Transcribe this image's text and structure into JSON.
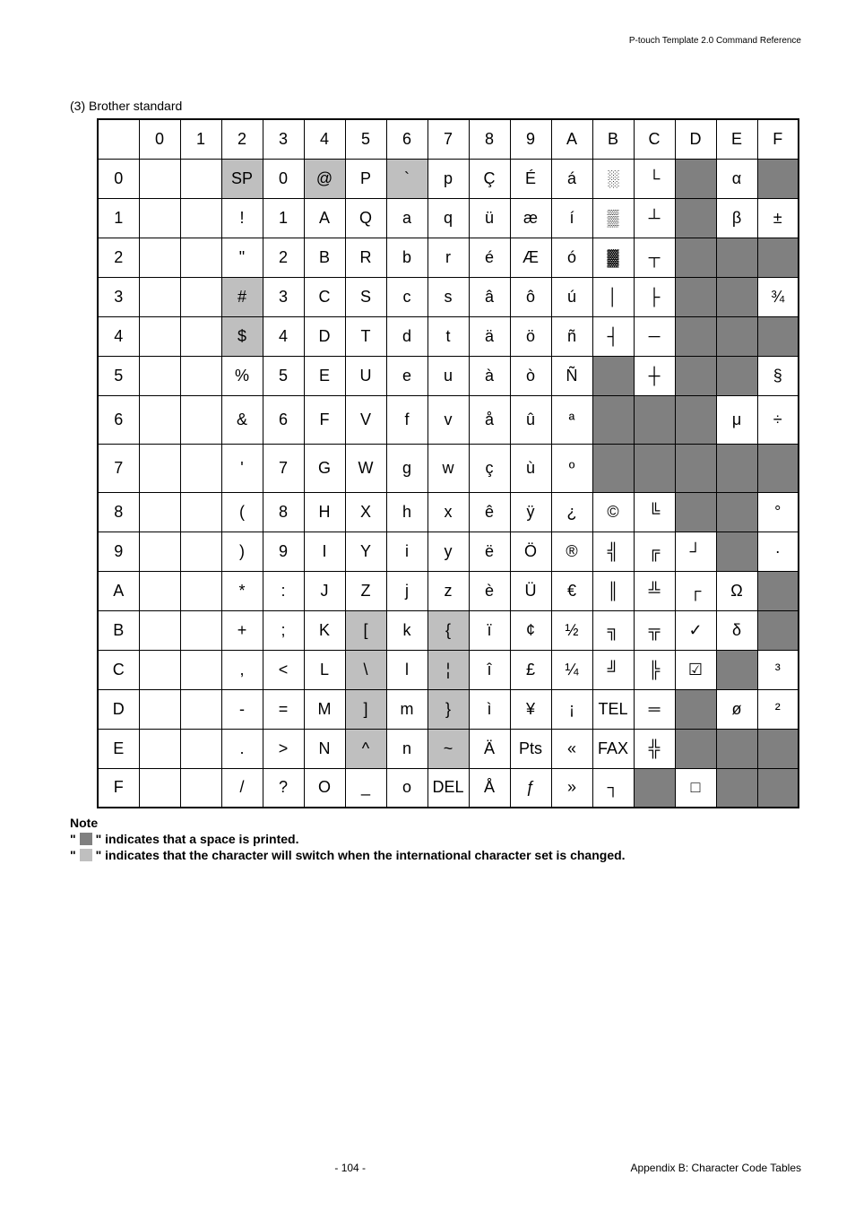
{
  "header": {
    "ref": "P-touch Template 2.0 Command Reference"
  },
  "section": {
    "title": "(3) Brother standard"
  },
  "table": {
    "col_headers": [
      "",
      "0",
      "1",
      "2",
      "3",
      "4",
      "5",
      "6",
      "7",
      "8",
      "9",
      "A",
      "B",
      "C",
      "D",
      "E",
      "F"
    ],
    "rows": [
      {
        "h": "0",
        "cells": [
          {
            "v": ""
          },
          {
            "v": ""
          },
          {
            "v": "SP",
            "cls": "grey"
          },
          {
            "v": "0"
          },
          {
            "v": "@",
            "cls": "grey"
          },
          {
            "v": "P"
          },
          {
            "v": "`",
            "cls": "grey"
          },
          {
            "v": "p"
          },
          {
            "v": "Ç"
          },
          {
            "v": "É"
          },
          {
            "v": "á"
          },
          {
            "v": "░"
          },
          {
            "v": "└"
          },
          {
            "v": "",
            "cls": "dark"
          },
          {
            "v": "α"
          },
          {
            "v": "",
            "cls": "dark"
          }
        ]
      },
      {
        "h": "1",
        "cells": [
          {
            "v": ""
          },
          {
            "v": ""
          },
          {
            "v": "!"
          },
          {
            "v": "1"
          },
          {
            "v": "A"
          },
          {
            "v": "Q"
          },
          {
            "v": "a"
          },
          {
            "v": "q"
          },
          {
            "v": "ü"
          },
          {
            "v": "æ"
          },
          {
            "v": "í"
          },
          {
            "v": "▒"
          },
          {
            "v": "┴"
          },
          {
            "v": "",
            "cls": "dark"
          },
          {
            "v": "β"
          },
          {
            "v": "±"
          }
        ]
      },
      {
        "h": "2",
        "cells": [
          {
            "v": ""
          },
          {
            "v": ""
          },
          {
            "v": "\""
          },
          {
            "v": "2"
          },
          {
            "v": "B"
          },
          {
            "v": "R"
          },
          {
            "v": "b"
          },
          {
            "v": "r"
          },
          {
            "v": "é"
          },
          {
            "v": "Æ"
          },
          {
            "v": "ó"
          },
          {
            "v": "▓"
          },
          {
            "v": "┬"
          },
          {
            "v": "",
            "cls": "dark"
          },
          {
            "v": "",
            "cls": "dark"
          },
          {
            "v": "",
            "cls": "dark"
          }
        ]
      },
      {
        "h": "3",
        "cells": [
          {
            "v": ""
          },
          {
            "v": ""
          },
          {
            "v": "#",
            "cls": "grey"
          },
          {
            "v": "3"
          },
          {
            "v": "C"
          },
          {
            "v": "S"
          },
          {
            "v": "c"
          },
          {
            "v": "s"
          },
          {
            "v": "â"
          },
          {
            "v": "ô"
          },
          {
            "v": "ú"
          },
          {
            "v": "│"
          },
          {
            "v": "├"
          },
          {
            "v": "",
            "cls": "dark"
          },
          {
            "v": "",
            "cls": "dark"
          },
          {
            "v": "¾"
          }
        ]
      },
      {
        "h": "4",
        "cells": [
          {
            "v": ""
          },
          {
            "v": ""
          },
          {
            "v": "$",
            "cls": "grey"
          },
          {
            "v": "4"
          },
          {
            "v": "D"
          },
          {
            "v": "T"
          },
          {
            "v": "d"
          },
          {
            "v": "t"
          },
          {
            "v": "ä"
          },
          {
            "v": "ö"
          },
          {
            "v": "ñ"
          },
          {
            "v": "┤"
          },
          {
            "v": "─"
          },
          {
            "v": "",
            "cls": "dark"
          },
          {
            "v": "",
            "cls": "dark"
          },
          {
            "v": "",
            "cls": "dark"
          }
        ]
      },
      {
        "h": "5",
        "cells": [
          {
            "v": ""
          },
          {
            "v": ""
          },
          {
            "v": "%"
          },
          {
            "v": "5"
          },
          {
            "v": "E"
          },
          {
            "v": "U"
          },
          {
            "v": "e"
          },
          {
            "v": "u"
          },
          {
            "v": "à"
          },
          {
            "v": "ò"
          },
          {
            "v": "Ñ"
          },
          {
            "v": "",
            "cls": "dark"
          },
          {
            "v": "┼"
          },
          {
            "v": "",
            "cls": "dark"
          },
          {
            "v": "",
            "cls": "dark"
          },
          {
            "v": "§"
          }
        ]
      },
      {
        "h": "6",
        "tall": true,
        "cells": [
          {
            "v": ""
          },
          {
            "v": ""
          },
          {
            "v": "&"
          },
          {
            "v": "6"
          },
          {
            "v": "F"
          },
          {
            "v": "V"
          },
          {
            "v": "f"
          },
          {
            "v": "v"
          },
          {
            "v": "å"
          },
          {
            "v": "û"
          },
          {
            "v": "ª"
          },
          {
            "v": "",
            "cls": "dark"
          },
          {
            "v": "",
            "cls": "dark"
          },
          {
            "v": "",
            "cls": "dark"
          },
          {
            "v": "μ"
          },
          {
            "v": "÷"
          }
        ]
      },
      {
        "h": "7",
        "tall": true,
        "cells": [
          {
            "v": ""
          },
          {
            "v": ""
          },
          {
            "v": "'"
          },
          {
            "v": "7"
          },
          {
            "v": "G"
          },
          {
            "v": "W"
          },
          {
            "v": "g"
          },
          {
            "v": "w"
          },
          {
            "v": "ç"
          },
          {
            "v": "ù"
          },
          {
            "v": "º"
          },
          {
            "v": "",
            "cls": "dark"
          },
          {
            "v": "",
            "cls": "dark"
          },
          {
            "v": "",
            "cls": "dark"
          },
          {
            "v": "",
            "cls": "dark"
          },
          {
            "v": "",
            "cls": "dark"
          }
        ]
      },
      {
        "h": "8",
        "cells": [
          {
            "v": ""
          },
          {
            "v": ""
          },
          {
            "v": "("
          },
          {
            "v": "8"
          },
          {
            "v": "H"
          },
          {
            "v": "X"
          },
          {
            "v": "h"
          },
          {
            "v": "x"
          },
          {
            "v": "ê"
          },
          {
            "v": "ÿ"
          },
          {
            "v": "¿"
          },
          {
            "v": "©"
          },
          {
            "v": "╚"
          },
          {
            "v": "",
            "cls": "dark"
          },
          {
            "v": "",
            "cls": "dark"
          },
          {
            "v": "°"
          }
        ]
      },
      {
        "h": "9",
        "cells": [
          {
            "v": ""
          },
          {
            "v": ""
          },
          {
            "v": ")"
          },
          {
            "v": "9"
          },
          {
            "v": "I"
          },
          {
            "v": "Y"
          },
          {
            "v": "i"
          },
          {
            "v": "y"
          },
          {
            "v": "ë"
          },
          {
            "v": "Ö"
          },
          {
            "v": "®"
          },
          {
            "v": "╣"
          },
          {
            "v": "╔"
          },
          {
            "v": "┘"
          },
          {
            "v": "",
            "cls": "dark"
          },
          {
            "v": "·"
          }
        ]
      },
      {
        "h": "A",
        "cells": [
          {
            "v": ""
          },
          {
            "v": ""
          },
          {
            "v": "*"
          },
          {
            "v": ":"
          },
          {
            "v": "J"
          },
          {
            "v": "Z"
          },
          {
            "v": "j"
          },
          {
            "v": "z"
          },
          {
            "v": "è"
          },
          {
            "v": "Ü"
          },
          {
            "v": "€"
          },
          {
            "v": "║"
          },
          {
            "v": "╩"
          },
          {
            "v": "┌"
          },
          {
            "v": "Ω"
          },
          {
            "v": "",
            "cls": "dark"
          }
        ]
      },
      {
        "h": "B",
        "cells": [
          {
            "v": ""
          },
          {
            "v": ""
          },
          {
            "v": "+"
          },
          {
            "v": ";"
          },
          {
            "v": "K"
          },
          {
            "v": "[",
            "cls": "grey"
          },
          {
            "v": "k"
          },
          {
            "v": "{",
            "cls": "grey"
          },
          {
            "v": "ï"
          },
          {
            "v": "¢"
          },
          {
            "v": "½"
          },
          {
            "v": "╗"
          },
          {
            "v": "╦"
          },
          {
            "v": "✓"
          },
          {
            "v": "δ"
          },
          {
            "v": "",
            "cls": "dark"
          }
        ]
      },
      {
        "h": "C",
        "cells": [
          {
            "v": ""
          },
          {
            "v": ""
          },
          {
            "v": ","
          },
          {
            "v": "<"
          },
          {
            "v": "L"
          },
          {
            "v": "\\",
            "cls": "grey"
          },
          {
            "v": "l"
          },
          {
            "v": "¦",
            "cls": "grey"
          },
          {
            "v": "î"
          },
          {
            "v": "£"
          },
          {
            "v": "¼"
          },
          {
            "v": "╝"
          },
          {
            "v": "╠"
          },
          {
            "v": "☑"
          },
          {
            "v": "",
            "cls": "dark"
          },
          {
            "v": "³"
          }
        ]
      },
      {
        "h": "D",
        "cells": [
          {
            "v": ""
          },
          {
            "v": ""
          },
          {
            "v": "-"
          },
          {
            "v": "="
          },
          {
            "v": "M"
          },
          {
            "v": "]",
            "cls": "grey"
          },
          {
            "v": "m"
          },
          {
            "v": "}",
            "cls": "grey"
          },
          {
            "v": "ì"
          },
          {
            "v": "¥"
          },
          {
            "v": "¡"
          },
          {
            "v": "TEL",
            "small": true
          },
          {
            "v": "═"
          },
          {
            "v": "",
            "cls": "dark"
          },
          {
            "v": "ø"
          },
          {
            "v": "²"
          }
        ]
      },
      {
        "h": "E",
        "cells": [
          {
            "v": ""
          },
          {
            "v": ""
          },
          {
            "v": "."
          },
          {
            "v": ">"
          },
          {
            "v": "N"
          },
          {
            "v": "^",
            "cls": "grey"
          },
          {
            "v": "n"
          },
          {
            "v": "~",
            "cls": "grey"
          },
          {
            "v": "Ä"
          },
          {
            "v": "Pts",
            "small": true
          },
          {
            "v": "«"
          },
          {
            "v": "FAX",
            "small": true
          },
          {
            "v": "╬"
          },
          {
            "v": "",
            "cls": "dark"
          },
          {
            "v": "",
            "cls": "dark"
          },
          {
            "v": "",
            "cls": "dark"
          }
        ]
      },
      {
        "h": "F",
        "cells": [
          {
            "v": ""
          },
          {
            "v": ""
          },
          {
            "v": "/"
          },
          {
            "v": "?"
          },
          {
            "v": "O"
          },
          {
            "v": "_"
          },
          {
            "v": "o"
          },
          {
            "v": "DEL",
            "small": true
          },
          {
            "v": "Å"
          },
          {
            "v": "ƒ"
          },
          {
            "v": "»"
          },
          {
            "v": "┐"
          },
          {
            "v": "",
            "cls": "dark"
          },
          {
            "v": "□"
          },
          {
            "v": "",
            "cls": "dark"
          },
          {
            "v": "",
            "cls": "dark"
          }
        ]
      }
    ]
  },
  "notes": {
    "title": "Note",
    "line1_prefix": "\"",
    "line1_suffix": "\" indicates that a space is printed.",
    "line2_prefix": "\"",
    "line2_suffix": "\" indicates that the character will switch when the international character set is changed."
  },
  "footer": {
    "page": "- 104 -",
    "appendix": "Appendix B: Character Code Tables"
  }
}
